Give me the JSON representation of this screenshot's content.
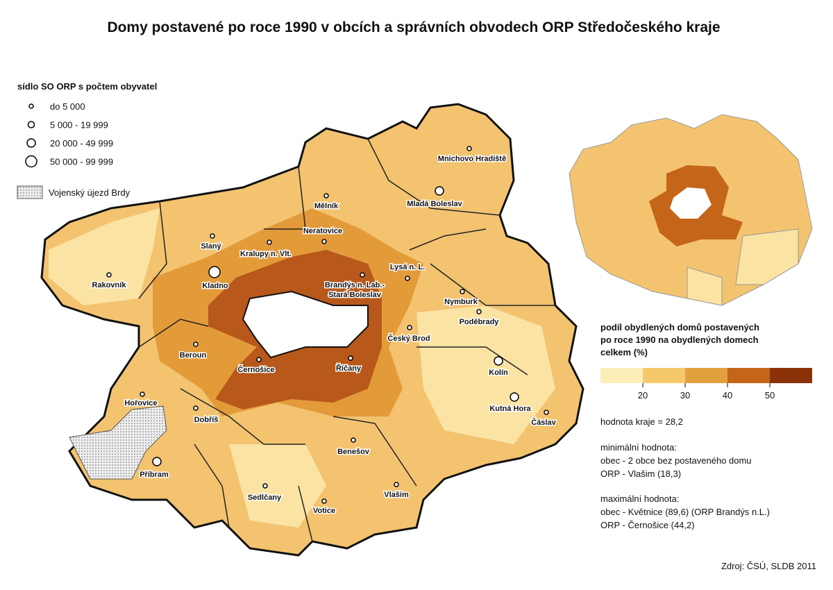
{
  "title": "Domy postavené po roce 1990 v obcích a správních obvodech ORP Středočeského kraje",
  "size_legend": {
    "title": "sídlo SO ORP s počtem obyvatel",
    "items": [
      "do 5 000",
      "5 000 - 19 999",
      "20 000 - 49 999",
      "50 000 - 99 999"
    ]
  },
  "pattern_legend": "Vojenský újezd Brdy",
  "cities": [
    {
      "label": "Mnichovo Hradiště"
    },
    {
      "label": "Mělník"
    },
    {
      "label": "Mladá Boleslav"
    },
    {
      "label": "Neratovice"
    },
    {
      "label": "Slaný"
    },
    {
      "label": "Kralupy n. Vlt."
    },
    {
      "label": "Kladno"
    },
    {
      "label": "Rakovník"
    },
    {
      "label": "Lysá n. L."
    },
    {
      "label": [
        "Brandýs n. Lab.-",
        "Stará Boleslav"
      ]
    },
    {
      "label": "Nymburk"
    },
    {
      "label": "Poděbrady"
    },
    {
      "label": "Český Brod"
    },
    {
      "label": "Beroun"
    },
    {
      "label": "Černošice"
    },
    {
      "label": "Říčany"
    },
    {
      "label": "Kolín"
    },
    {
      "label": "Hořovice"
    },
    {
      "label": "Kutná Hora"
    },
    {
      "label": "Čáslav"
    },
    {
      "label": "Dobříš"
    },
    {
      "label": "Benešov"
    },
    {
      "label": "Příbram"
    },
    {
      "label": "Sedlčany"
    },
    {
      "label": "Vlašim"
    },
    {
      "label": "Votice"
    }
  ],
  "color_legend": {
    "title": [
      "podíl obydlených domů postavených",
      "po roce 1990 na obydlených domech",
      "celkem (%)"
    ],
    "colors": [
      "#fdedb8",
      "#f6c86c",
      "#e2a03f",
      "#c4651a",
      "#8b3208"
    ],
    "ticks": [
      20,
      30,
      40,
      50
    ]
  },
  "notes": [
    "hodnota kraje = 28,2",
    "minimální hodnota:",
    "obec - 2 obce bez postaveného domu",
    "ORP - Vlašim (18,3)",
    "maximální hodnota:",
    "obec - Květnice (89,6) (ORP Brandýs n.L.)",
    "ORP - Černošice (44,2)"
  ],
  "source": "Zdroj: ČSÚ, SLDB 2011"
}
